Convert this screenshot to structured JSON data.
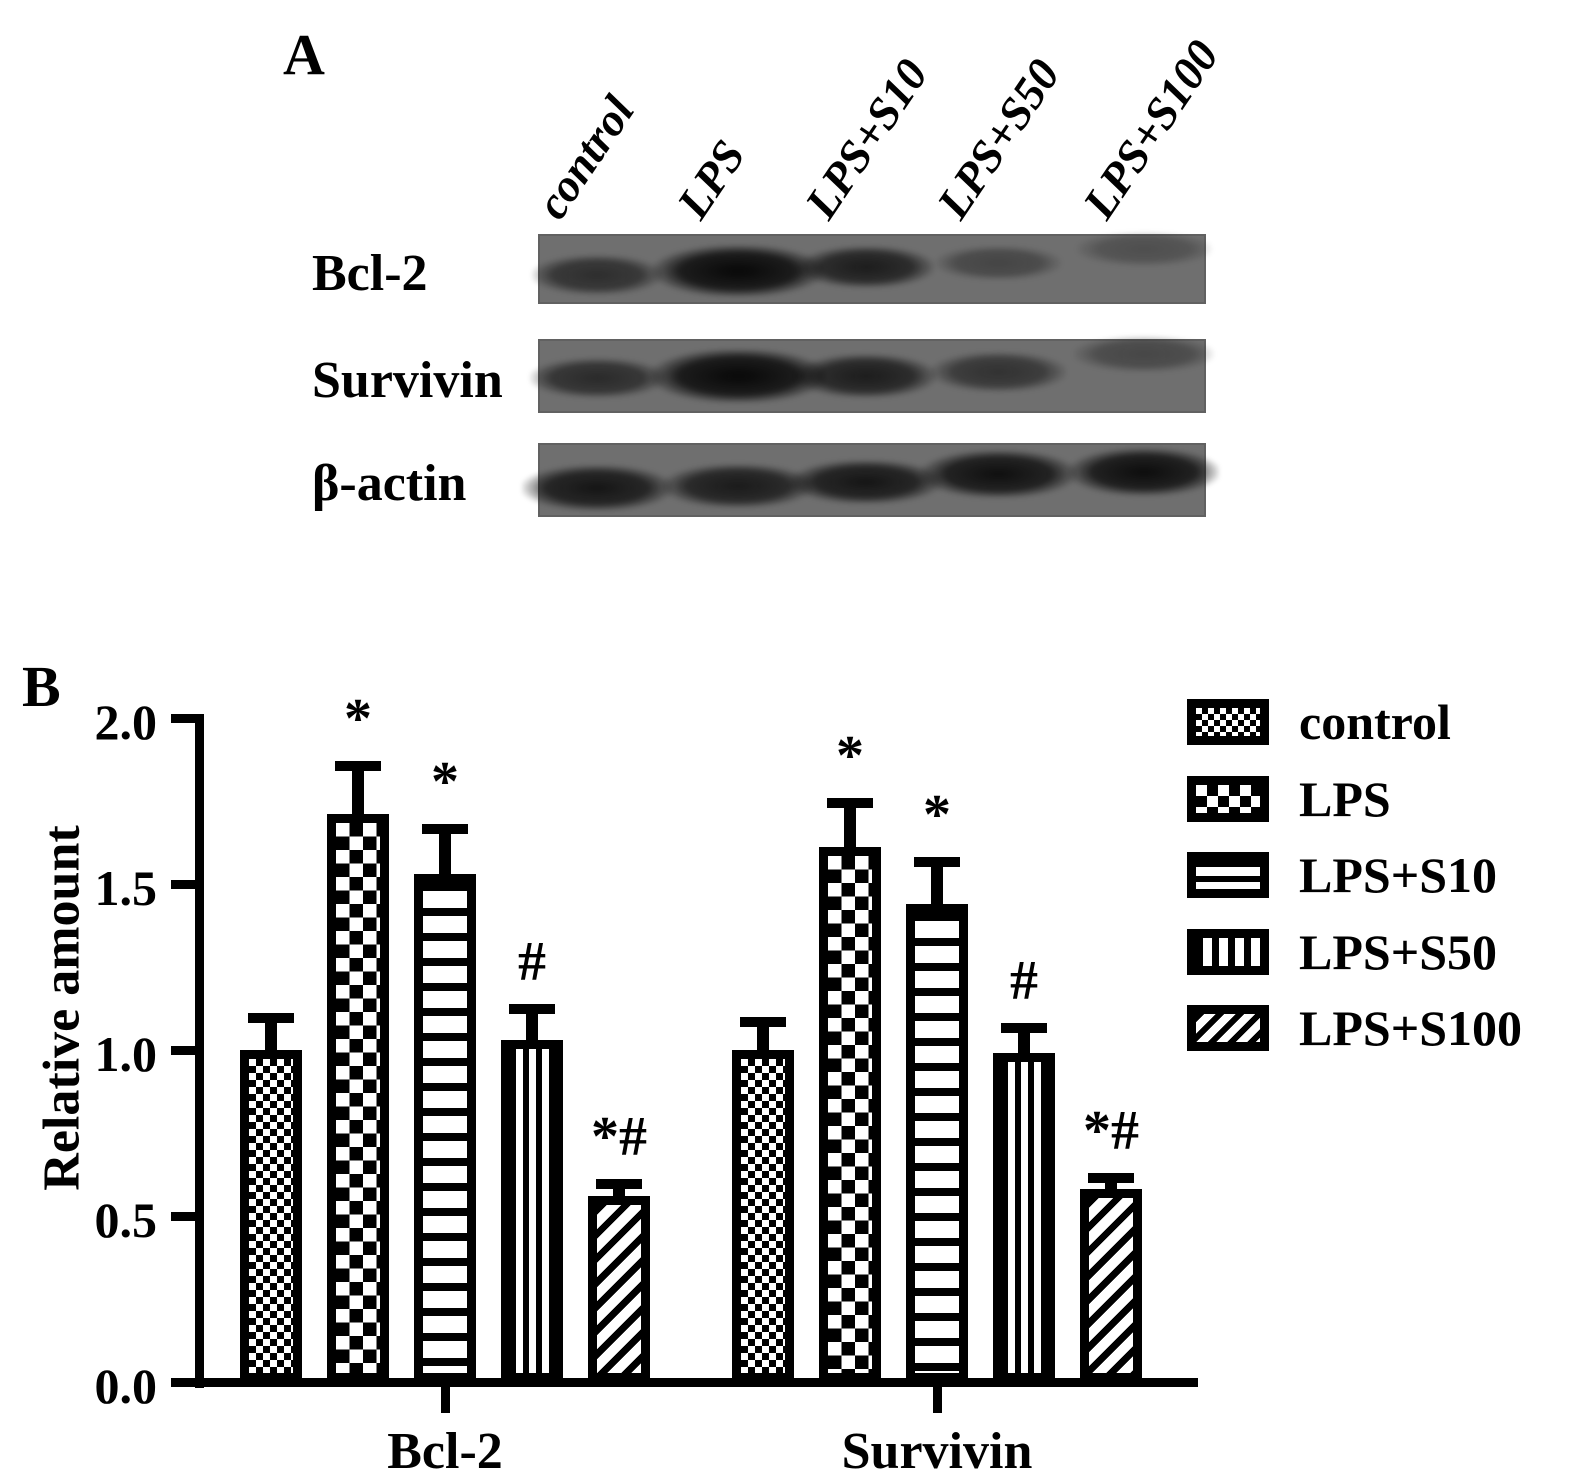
{
  "figure": {
    "panel_a_label": "A",
    "panel_b_label": "B"
  },
  "panelA": {
    "lane_labels": [
      "control",
      "LPS",
      "LPS+S10",
      "LPS+S50",
      "LPS+S100"
    ],
    "rows": [
      {
        "label": "Bcl-2",
        "band_intensities": [
          0.62,
          0.97,
          0.78,
          0.4,
          0.3
        ]
      },
      {
        "label": "Survivin",
        "band_intensities": [
          0.65,
          0.97,
          0.78,
          0.58,
          0.38
        ]
      },
      {
        "label": "β-actin",
        "band_intensities": [
          0.85,
          0.8,
          0.85,
          0.9,
          0.92
        ]
      }
    ]
  },
  "chart_data": {
    "type": "bar",
    "title": "",
    "xlabel": "",
    "ylabel": "Relative amount",
    "ylim": [
      0.0,
      2.0
    ],
    "yticks": [
      "0.0",
      "0.5",
      "1.0",
      "1.5",
      "2.0"
    ],
    "grid": false,
    "legend_position": "right",
    "categories": [
      "Bcl-2",
      "Survivin"
    ],
    "series": [
      {
        "name": "control",
        "pattern": "checker-fine",
        "values": [
          1.0,
          1.0
        ],
        "errors": [
          0.11,
          0.1
        ],
        "annotations": [
          "",
          ""
        ]
      },
      {
        "name": "LPS",
        "pattern": "checker-coarse",
        "values": [
          1.71,
          1.61
        ],
        "errors": [
          0.16,
          0.15
        ],
        "annotations": [
          "*",
          "*"
        ]
      },
      {
        "name": "LPS+S10",
        "pattern": "hlines",
        "values": [
          1.53,
          1.44
        ],
        "errors": [
          0.15,
          0.14
        ],
        "annotations": [
          "*",
          "*"
        ]
      },
      {
        "name": "LPS+S50",
        "pattern": "vlines",
        "values": [
          1.03,
          0.99
        ],
        "errors": [
          0.11,
          0.09
        ],
        "annotations": [
          "#",
          "#"
        ]
      },
      {
        "name": "LPS+S100",
        "pattern": "diag",
        "values": [
          0.56,
          0.58
        ],
        "errors": [
          0.05,
          0.05
        ],
        "annotations": [
          "*#",
          "*#"
        ]
      }
    ]
  }
}
